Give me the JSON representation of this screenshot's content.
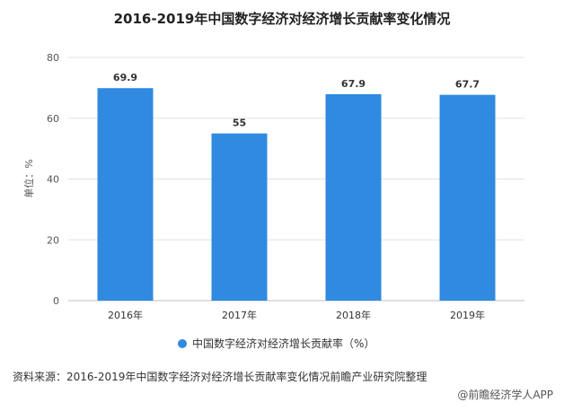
{
  "chart_data": {
    "type": "bar",
    "title": "2016-2019年中国数字经济对经济增长贡献率变化情况",
    "categories": [
      "2016年",
      "2017年",
      "2018年",
      "2019年"
    ],
    "series": [
      {
        "name": "中国数字经济对经济增长贡献率（%）",
        "values": [
          69.9,
          55,
          67.9,
          67.7
        ]
      }
    ],
    "data_labels": [
      "69.9",
      "55",
      "67.9",
      "67.7"
    ],
    "ylabel": "单位：%",
    "ylim": [
      0,
      80
    ],
    "yticks": [
      0,
      20,
      40,
      60,
      80
    ],
    "grid": true,
    "legend_position": "bottom",
    "bar_color": "#2f8ae0"
  },
  "footer": {
    "source": "资料来源：2016-2019年中国数字经济对经济增长贡献率变化情况前瞻产业研究院整理",
    "credit": "@前瞻经济学人APP"
  }
}
